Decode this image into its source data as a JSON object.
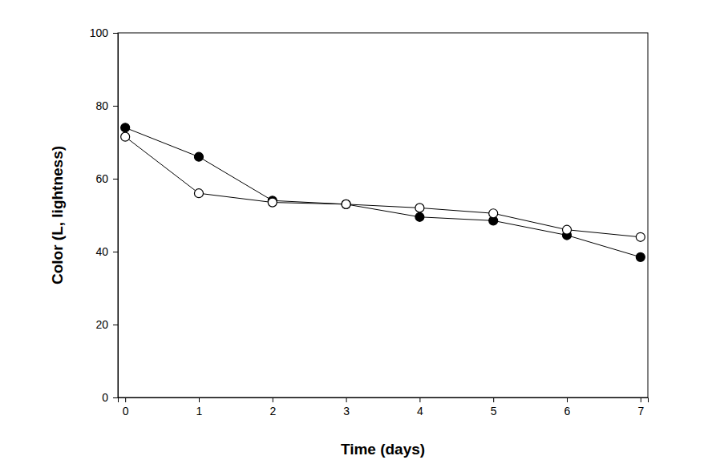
{
  "chart_data": {
    "type": "line",
    "x_label": "Time (days)",
    "y_label": "Color (L, lightness)",
    "x": [
      0,
      1,
      2,
      3,
      4,
      5,
      6,
      7
    ],
    "series": [
      {
        "color": "#000000",
        "marker": "circle",
        "values": [
          74,
          66,
          54,
          53,
          49.5,
          48.5,
          44.5,
          38.5
        ]
      },
      {
        "color": "#000000",
        "marker": "open-circle",
        "values": [
          71.5,
          56,
          53.5,
          53,
          52,
          50.5,
          46,
          44
        ]
      }
    ],
    "xlim": [
      -0.1,
      7.1
    ],
    "xticks": [
      0,
      1,
      2,
      3,
      4,
      5,
      6,
      7
    ],
    "ylim": [
      0,
      100
    ],
    "yticks": [
      0,
      20,
      40,
      60,
      80,
      100
    ],
    "grid": false
  }
}
